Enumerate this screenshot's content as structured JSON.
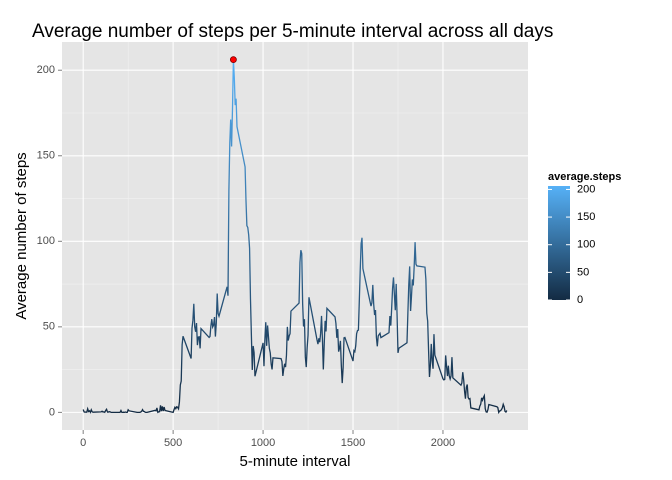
{
  "chart_data": {
    "type": "line",
    "title": "Average number of steps per 5-minute interval across all days",
    "x_label": "5-minute interval",
    "y_label": "Average number of steps",
    "x": [
      0,
      5,
      10,
      15,
      20,
      25,
      30,
      35,
      40,
      45,
      50,
      55,
      100,
      105,
      110,
      115,
      120,
      125,
      130,
      135,
      140,
      145,
      150,
      155,
      200,
      205,
      210,
      215,
      220,
      225,
      230,
      235,
      240,
      245,
      250,
      255,
      300,
      305,
      310,
      315,
      320,
      325,
      330,
      335,
      340,
      345,
      350,
      355,
      400,
      405,
      410,
      415,
      420,
      425,
      430,
      435,
      440,
      445,
      450,
      455,
      500,
      505,
      510,
      515,
      520,
      525,
      530,
      535,
      540,
      545,
      550,
      555,
      600,
      605,
      610,
      615,
      620,
      625,
      630,
      635,
      640,
      645,
      650,
      655,
      700,
      705,
      710,
      715,
      720,
      725,
      730,
      735,
      740,
      745,
      750,
      755,
      800,
      805,
      810,
      815,
      820,
      825,
      830,
      835,
      840,
      845,
      850,
      855,
      900,
      905,
      910,
      915,
      920,
      925,
      930,
      935,
      940,
      945,
      950,
      955,
      1000,
      1005,
      1010,
      1015,
      1020,
      1025,
      1030,
      1035,
      1040,
      1045,
      1050,
      1055,
      1100,
      1105,
      1110,
      1115,
      1120,
      1125,
      1130,
      1135,
      1140,
      1145,
      1150,
      1155,
      1200,
      1205,
      1210,
      1215,
      1220,
      1225,
      1230,
      1235,
      1240,
      1245,
      1250,
      1255,
      1300,
      1305,
      1310,
      1315,
      1320,
      1325,
      1330,
      1335,
      1340,
      1345,
      1350,
      1355,
      1400,
      1405,
      1410,
      1415,
      1420,
      1425,
      1430,
      1435,
      1440,
      1445,
      1450,
      1455,
      1500,
      1505,
      1510,
      1515,
      1520,
      1525,
      1530,
      1535,
      1540,
      1545,
      1550,
      1555,
      1600,
      1605,
      1610,
      1615,
      1620,
      1625,
      1630,
      1635,
      1640,
      1645,
      1650,
      1655,
      1700,
      1705,
      1710,
      1715,
      1720,
      1725,
      1730,
      1735,
      1740,
      1745,
      1750,
      1755,
      1800,
      1805,
      1810,
      1815,
      1820,
      1825,
      1830,
      1835,
      1840,
      1845,
      1850,
      1855,
      1900,
      1905,
      1910,
      1915,
      1920,
      1925,
      1930,
      1935,
      1940,
      1945,
      1950,
      1955,
      2000,
      2005,
      2010,
      2015,
      2020,
      2025,
      2030,
      2035,
      2040,
      2045,
      2050,
      2055,
      2100,
      2105,
      2110,
      2115,
      2120,
      2125,
      2130,
      2135,
      2140,
      2145,
      2150,
      2155,
      2200,
      2205,
      2210,
      2215,
      2220,
      2225,
      2230,
      2235,
      2240,
      2245,
      2250,
      2255,
      2300,
      2305,
      2310,
      2315,
      2320,
      2325,
      2330,
      2335,
      2340,
      2345,
      2350,
      2355
    ],
    "series": [
      {
        "name": "average.steps",
        "values": [
          1.7,
          0.3,
          0.1,
          0.2,
          0.1,
          2.1,
          0.5,
          0.9,
          0,
          1.5,
          0.3,
          0.1,
          0.3,
          0.7,
          0.2,
          0.3,
          0,
          1.1,
          1.8,
          0.2,
          0.2,
          0.4,
          0.3,
          0,
          0,
          0,
          1.1,
          0,
          0,
          0.1,
          0,
          0.2,
          0,
          0,
          1.5,
          0.9,
          0,
          0,
          0,
          0,
          0.2,
          0.6,
          1.6,
          0.6,
          0.5,
          0.1,
          0,
          0,
          1.2,
          0.9,
          2.6,
          0,
          0.3,
          0.4,
          4.1,
          0.7,
          3.5,
          0.8,
          3.1,
          1.1,
          0,
          1.6,
          3,
          2.2,
          3.3,
          3,
          2.1,
          6.1,
          16,
          18.3,
          39.5,
          44.5,
          31.5,
          49.3,
          53.8,
          63.5,
          50,
          47.1,
          52.2,
          39.3,
          44,
          44.2,
          37.4,
          49,
          43.8,
          44.4,
          50.5,
          54.5,
          49.9,
          51,
          55.7,
          44.3,
          52.3,
          69.5,
          57.8,
          56.2,
          73.4,
          68.2,
          129.4,
          157.5,
          171.2,
          155.4,
          177.3,
          206.2,
          195.9,
          179.6,
          183.4,
          167,
          143.5,
          124,
          109.1,
          108.1,
          103.7,
          95.9,
          66.2,
          45.2,
          24.8,
          38.8,
          35,
          21.1,
          40.6,
          27,
          42.4,
          52.7,
          38.9,
          50.8,
          44.3,
          37.4,
          34.7,
          28.3,
          25.1,
          31.9,
          31.4,
          29.7,
          21.3,
          25.5,
          28.4,
          26.5,
          33.4,
          50,
          42,
          44.6,
          46,
          59.2,
          63.9,
          87.7,
          94.8,
          92.8,
          63.4,
          50.2,
          54.5,
          32.4,
          26.5,
          37.7,
          45.1,
          67.3,
          42.3,
          39.9,
          43.3,
          41,
          46.2,
          56.4,
          42.8,
          25.1,
          40,
          53.5,
          47.3,
          60.8,
          55.8,
          52,
          43.6,
          48.7,
          35.5,
          37.5,
          41.8,
          27.5,
          17.1,
          26.1,
          43.6,
          43.8,
          30,
          36.1,
          35.5,
          38.8,
          46,
          47.8,
          48.1,
          65.3,
          82.9,
          98.7,
          102.1,
          84,
          62.1,
          64.1,
          74.5,
          63.2,
          56.9,
          59.8,
          43.9,
          38.6,
          44.7,
          45.5,
          46.2,
          43.7,
          46.6,
          56.3,
          50.7,
          61.2,
          72.7,
          78.9,
          68.9,
          59.7,
          75.1,
          56.5,
          34.8,
          37.5,
          40.7,
          58,
          74.7,
          85.3,
          59.3,
          67.8,
          77.7,
          74.2,
          85.3,
          99.5,
          86.6,
          85.6,
          84.9,
          77.8,
          58,
          53.4,
          36.3,
          20.7,
          27.4,
          40,
          30.2,
          25.5,
          45.7,
          33.5,
          19.6,
          19,
          19.3,
          33.3,
          26.8,
          21.2,
          27.3,
          21.3,
          19.5,
          21.3,
          32.3,
          20.2,
          15.9,
          17.2,
          23.5,
          19.2,
          12.5,
          8,
          14.7,
          16.3,
          8.7,
          7.8,
          8.1,
          2.6,
          1.5,
          3.7,
          4.8,
          8.5,
          7.1,
          8.7,
          9.8,
          2.2,
          0.3,
          0.1,
          1.6,
          4.6,
          3.3,
          2.8,
          0,
          0.8,
          1,
          1.6,
          2.6,
          4.7,
          3.3,
          0.6,
          0.2,
          1.1
        ]
      }
    ],
    "xlim": [
      -117.75,
      2472.75
    ],
    "ylim": [
      -10.3,
      216.5
    ],
    "xticks": [
      0,
      500,
      1000,
      1500,
      2000
    ],
    "yticks": [
      0,
      50,
      100,
      150,
      200
    ],
    "grid": true,
    "color_scale": {
      "low": "#132B43",
      "high": "#56B1F7",
      "ticks": [
        0,
        50,
        100,
        150,
        200
      ]
    },
    "highlight_max_color": "red",
    "legend_position": "right"
  }
}
